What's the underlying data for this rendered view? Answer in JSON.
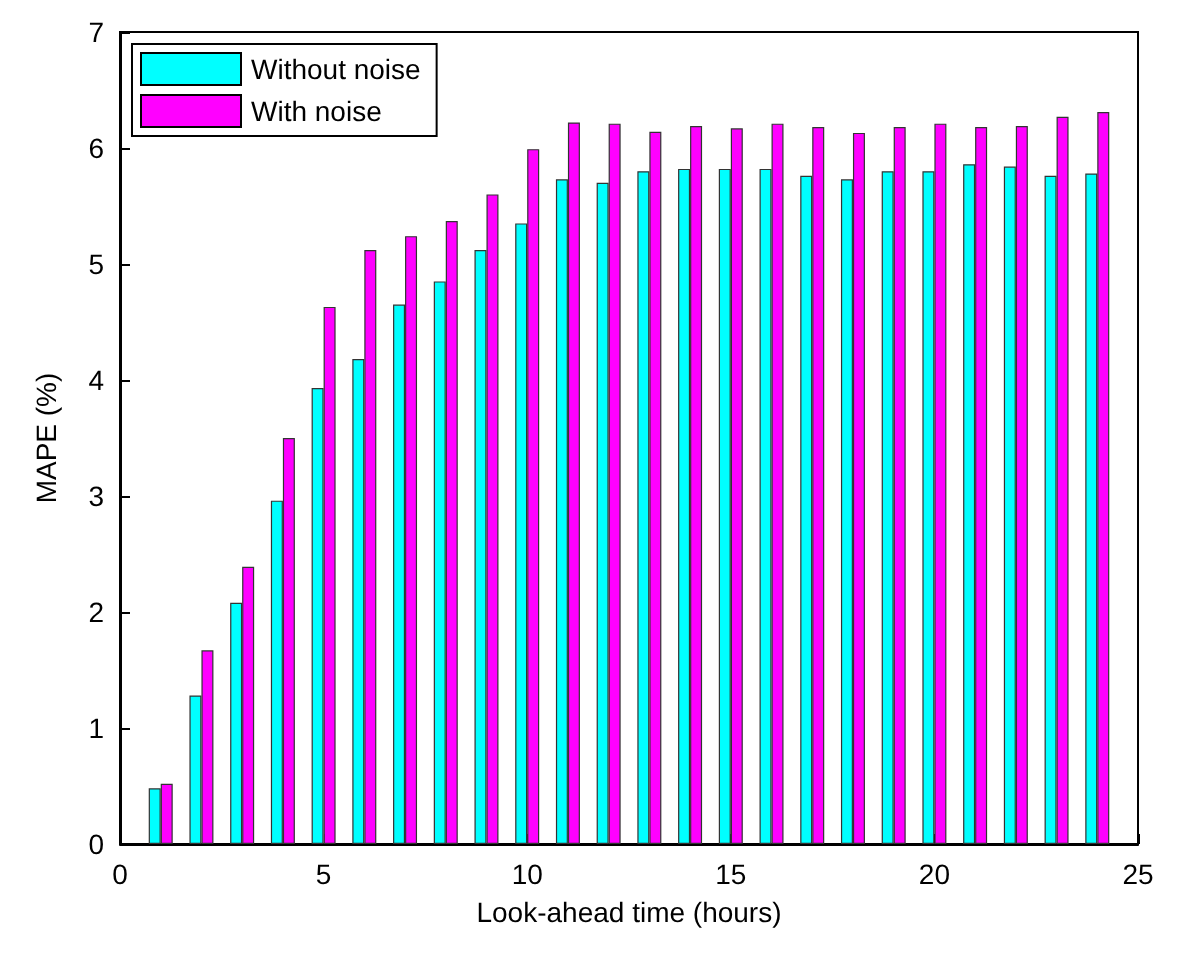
{
  "chart_data": {
    "type": "bar",
    "xlabel": "Look-ahead time (hours)",
    "ylabel": "MAPE (%)",
    "x": [
      1,
      2,
      3,
      4,
      5,
      6,
      7,
      8,
      9,
      10,
      11,
      12,
      13,
      14,
      15,
      16,
      17,
      18,
      19,
      20,
      21,
      22,
      23,
      24
    ],
    "series": [
      {
        "name": "Without noise",
        "color": "#00ffff",
        "values": [
          0.48,
          1.28,
          2.08,
          2.96,
          3.93,
          4.18,
          4.65,
          4.85,
          5.12,
          5.35,
          5.73,
          5.7,
          5.8,
          5.82,
          5.82,
          5.82,
          5.76,
          5.73,
          5.8,
          5.8,
          5.86,
          5.84,
          5.76,
          5.78
        ]
      },
      {
        "name": "With noise",
        "color": "#ff00ff",
        "values": [
          0.52,
          1.67,
          2.39,
          3.5,
          4.63,
          5.12,
          5.24,
          5.37,
          5.6,
          5.99,
          6.22,
          6.21,
          6.14,
          6.19,
          6.17,
          6.21,
          6.18,
          6.13,
          6.18,
          6.21,
          6.18,
          6.19,
          6.27,
          6.31
        ]
      }
    ],
    "xlim": [
      0,
      25
    ],
    "xticks": [
      0,
      5,
      10,
      15,
      20,
      25
    ],
    "ylim": [
      0,
      7
    ],
    "yticks": [
      0,
      1,
      2,
      3,
      4,
      5,
      6,
      7
    ],
    "grid": false,
    "legend": "top left"
  }
}
